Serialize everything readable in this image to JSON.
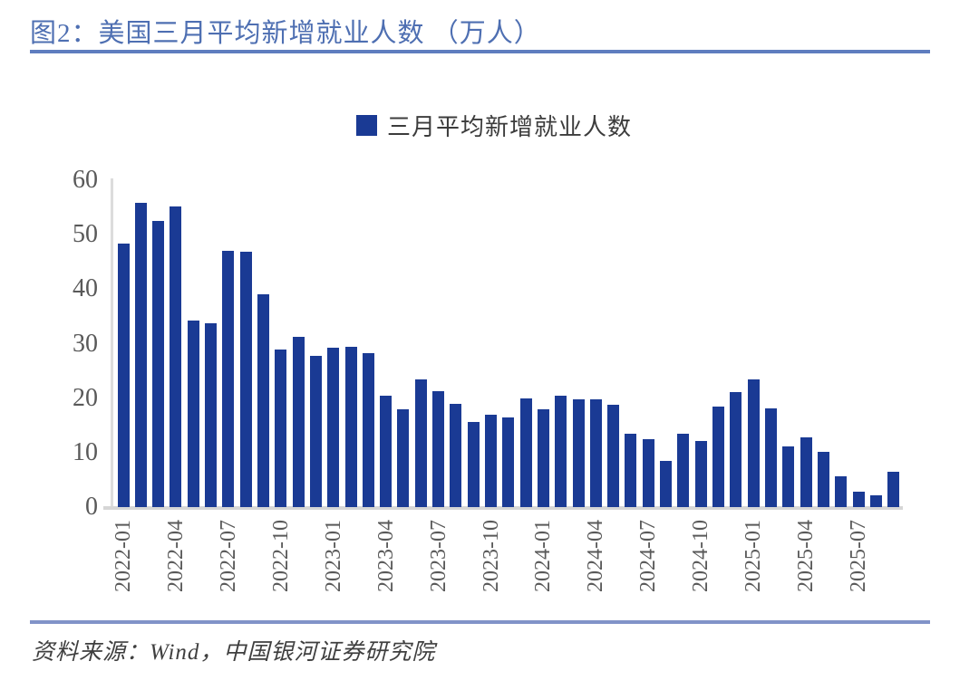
{
  "figure": {
    "title": "图2：美国三月平均新增就业人数 （万人）",
    "source": "资料来源：Wind，中国银河证券研究院"
  },
  "legend": {
    "label": "三月平均新增就业人数"
  },
  "colors": {
    "bar": "#1A3A94",
    "title_text": "#4E6FB2",
    "title_rule": "#5F7DBF",
    "footer_rule": "#8193C8",
    "axis_line": "#D9D9D9",
    "tick_label": "#595959"
  },
  "chart_data": {
    "type": "bar",
    "title": "三月平均新增就业人数",
    "xlabel": "",
    "ylabel": "",
    "ylim": [
      0,
      60
    ],
    "yticks": [
      0,
      10,
      20,
      30,
      40,
      50,
      60
    ],
    "grid": false,
    "legend_position": "top-center",
    "x_tick_every": 3,
    "x_tick_labels": [
      "2022-01",
      "2022-04",
      "2022-07",
      "2022-10",
      "2023-01",
      "2023-04",
      "2023-07",
      "2023-10",
      "2024-01",
      "2024-04",
      "2024-07",
      "2024-10",
      "2025-01",
      "2025-04",
      "2025-07"
    ],
    "categories": [
      "2022-01",
      "2022-02",
      "2022-03",
      "2022-04",
      "2022-05",
      "2022-06",
      "2022-07",
      "2022-08",
      "2022-09",
      "2022-10",
      "2022-11",
      "2022-12",
      "2023-01",
      "2023-02",
      "2023-03",
      "2023-04",
      "2023-05",
      "2023-06",
      "2023-07",
      "2023-08",
      "2023-09",
      "2023-10",
      "2023-11",
      "2023-12",
      "2024-01",
      "2024-02",
      "2024-03",
      "2024-04",
      "2024-05",
      "2024-06",
      "2024-07",
      "2024-08",
      "2024-09",
      "2024-10",
      "2024-11",
      "2024-12",
      "2025-01",
      "2025-02",
      "2025-03",
      "2025-04",
      "2025-05",
      "2025-06",
      "2025-07",
      "2025-08",
      "2025-09"
    ],
    "values": [
      48.3,
      55.9,
      52.5,
      55.2,
      34.2,
      33.8,
      47.1,
      46.8,
      39.0,
      29.0,
      31.2,
      27.7,
      29.3,
      29.5,
      28.2,
      20.5,
      17.9,
      23.5,
      21.2,
      19.0,
      15.7,
      16.9,
      16.4,
      20.0,
      17.9,
      20.5,
      19.7,
      19.7,
      18.7,
      13.4,
      12.5,
      8.5,
      13.5,
      12.1,
      18.4,
      21.1,
      23.4,
      18.1,
      11.2,
      12.8,
      10.1,
      5.7,
      2.9,
      2.1,
      6.4
    ]
  }
}
